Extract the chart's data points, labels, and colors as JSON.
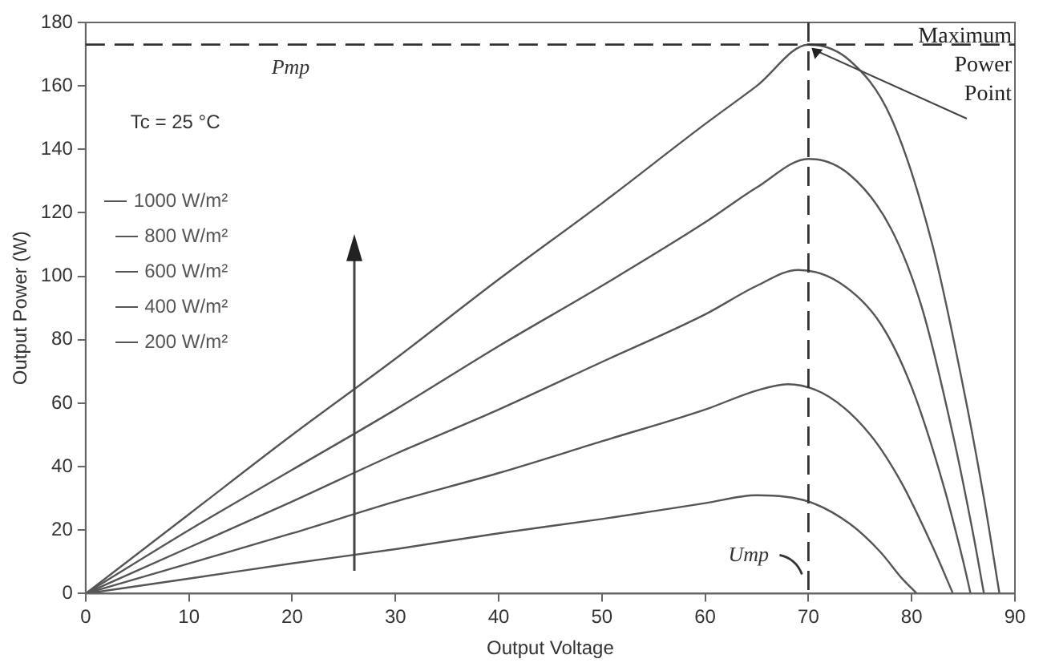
{
  "chart_data": {
    "type": "line",
    "xlabel": "Output Voltage",
    "ylabel": "Output Power (W)",
    "xlim": [
      0,
      90
    ],
    "xticks": [
      0,
      10,
      20,
      30,
      40,
      50,
      60,
      70,
      80,
      90
    ],
    "ylim": [
      0,
      180
    ],
    "yticks": [
      0,
      20,
      40,
      60,
      80,
      100,
      120,
      140,
      160,
      180
    ],
    "grid": false,
    "legend": "left",
    "marker": "none",
    "line_style": "solid",
    "series": [
      {
        "name": "1000 W/m²",
        "color": "#555555",
        "x": [
          0,
          10,
          20,
          30,
          40,
          50,
          60,
          65,
          70,
          74,
          78,
          82,
          85,
          87,
          88.5
        ],
        "values": [
          0,
          25,
          50,
          74,
          99,
          123,
          148,
          160,
          173,
          168,
          150,
          110,
          65,
          30,
          0
        ]
      },
      {
        "name": "800 W/m²",
        "color": "#555555",
        "x": [
          0,
          10,
          20,
          30,
          40,
          50,
          60,
          65,
          70,
          74,
          78,
          81,
          84,
          86,
          87
        ],
        "values": [
          0,
          20,
          39,
          58,
          78,
          97,
          117,
          128,
          137,
          132,
          115,
          90,
          50,
          18,
          0
        ]
      },
      {
        "name": "600 W/m²",
        "color": "#555555",
        "x": [
          0,
          10,
          20,
          30,
          40,
          50,
          60,
          65,
          69,
          73,
          77,
          80,
          83,
          85,
          85.7
        ],
        "values": [
          0,
          14.5,
          29,
          44,
          58,
          73,
          88,
          97,
          102,
          98,
          85,
          65,
          35,
          10,
          0
        ]
      },
      {
        "name": "400 W/m²",
        "color": "#555555",
        "x": [
          0,
          10,
          20,
          30,
          40,
          50,
          60,
          65,
          68,
          72,
          76,
          79,
          82,
          84
        ],
        "values": [
          0,
          9.5,
          19,
          29,
          38,
          48,
          58,
          64,
          66,
          62,
          50,
          35,
          15,
          0
        ]
      },
      {
        "name": "200 W/m²",
        "color": "#555555",
        "x": [
          0,
          10,
          20,
          30,
          40,
          50,
          60,
          65,
          70,
          74,
          77,
          79,
          80.5
        ],
        "values": [
          0,
          4.7,
          9.5,
          14,
          19,
          23.5,
          28.5,
          31,
          29,
          22,
          13,
          5,
          0
        ]
      }
    ],
    "ref_lines": [
      {
        "axis": "y",
        "value": 173,
        "label": "Pmp",
        "line_style": "dashed",
        "color": "#333333"
      },
      {
        "axis": "x",
        "value": 70,
        "label": "Ump",
        "line_style": "dashed",
        "color": "#333333"
      }
    ],
    "annotations": [
      "Tc = 25 °C",
      {
        "text": "Maximum Power Point",
        "x": 70,
        "y": 173
      }
    ]
  }
}
